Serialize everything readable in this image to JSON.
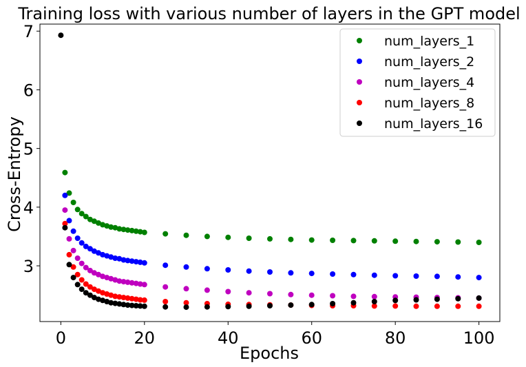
{
  "chart_data": {
    "type": "scatter",
    "title": "Training loss with various number of layers in the GPT model",
    "xlabel": "Epochs",
    "ylabel": "Cross-Entropy",
    "xlim": [
      -5,
      105
    ],
    "ylim": [
      2.05,
      7.12
    ],
    "xticks": [
      0,
      20,
      40,
      60,
      80,
      100
    ],
    "yticks": [
      3,
      4,
      5,
      6,
      7
    ],
    "grid": false,
    "legend_position": "top-right",
    "series": [
      {
        "name": "num_layers_1",
        "color": "#008000",
        "x": [
          1,
          2,
          3,
          4,
          5,
          6,
          7,
          8,
          9,
          10,
          11,
          12,
          13,
          14,
          15,
          16,
          17,
          18,
          19,
          20,
          25,
          30,
          35,
          40,
          45,
          50,
          55,
          60,
          65,
          70,
          75,
          80,
          85,
          90,
          95,
          100
        ],
        "y": [
          4.59,
          4.24,
          4.08,
          3.96,
          3.89,
          3.84,
          3.79,
          3.76,
          3.73,
          3.7,
          3.68,
          3.66,
          3.65,
          3.63,
          3.62,
          3.61,
          3.6,
          3.59,
          3.58,
          3.57,
          3.545,
          3.52,
          3.5,
          3.485,
          3.47,
          3.46,
          3.45,
          3.44,
          3.435,
          3.43,
          3.425,
          3.42,
          3.415,
          3.41,
          3.405,
          3.4
        ]
      },
      {
        "name": "num_layers_2",
        "color": "#0000ff",
        "x": [
          1,
          2,
          3,
          4,
          5,
          6,
          7,
          8,
          9,
          10,
          11,
          12,
          13,
          14,
          15,
          16,
          17,
          18,
          19,
          20,
          25,
          30,
          35,
          40,
          45,
          50,
          55,
          60,
          65,
          70,
          75,
          80,
          85,
          90,
          95,
          100
        ],
        "y": [
          4.2,
          3.77,
          3.59,
          3.47,
          3.39,
          3.33,
          3.29,
          3.25,
          3.22,
          3.19,
          3.17,
          3.15,
          3.13,
          3.12,
          3.1,
          3.09,
          3.08,
          3.07,
          3.06,
          3.05,
          3.01,
          2.98,
          2.95,
          2.93,
          2.91,
          2.895,
          2.88,
          2.87,
          2.86,
          2.85,
          2.84,
          2.83,
          2.825,
          2.82,
          2.81,
          2.8
        ]
      },
      {
        "name": "num_layers_4",
        "color": "#bf00bf",
        "x": [
          1,
          2,
          3,
          4,
          5,
          6,
          7,
          8,
          9,
          10,
          11,
          12,
          13,
          14,
          15,
          16,
          17,
          18,
          19,
          20,
          25,
          30,
          35,
          40,
          45,
          50,
          55,
          60,
          65,
          70,
          75,
          80,
          85,
          90,
          95,
          100
        ],
        "y": [
          3.95,
          3.46,
          3.26,
          3.13,
          3.04,
          2.97,
          2.92,
          2.88,
          2.85,
          2.82,
          2.8,
          2.78,
          2.76,
          2.74,
          2.73,
          2.72,
          2.71,
          2.7,
          2.69,
          2.68,
          2.64,
          2.61,
          2.585,
          2.56,
          2.54,
          2.525,
          2.51,
          2.5,
          2.49,
          2.48,
          2.475,
          2.47,
          2.465,
          2.46,
          2.455,
          2.45
        ]
      },
      {
        "name": "num_layers_8",
        "color": "#ff0000",
        "x": [
          1,
          2,
          3,
          4,
          5,
          6,
          7,
          8,
          9,
          10,
          11,
          12,
          13,
          14,
          15,
          16,
          17,
          18,
          19,
          20,
          25,
          30,
          35,
          40,
          45,
          50,
          55,
          60,
          65,
          70,
          75,
          80,
          85,
          90,
          95,
          100
        ],
        "y": [
          3.72,
          3.19,
          2.98,
          2.85,
          2.76,
          2.69,
          2.64,
          2.6,
          2.57,
          2.54,
          2.52,
          2.5,
          2.48,
          2.47,
          2.46,
          2.45,
          2.44,
          2.43,
          2.42,
          2.415,
          2.39,
          2.37,
          2.355,
          2.345,
          2.34,
          2.335,
          2.33,
          2.325,
          2.32,
          2.32,
          2.315,
          2.315,
          2.31,
          2.31,
          2.31,
          2.31
        ]
      },
      {
        "name": "num_layers_16",
        "color": "#000000",
        "x": [
          0,
          1,
          2,
          3,
          4,
          5,
          6,
          7,
          8,
          9,
          10,
          11,
          12,
          13,
          14,
          15,
          16,
          17,
          18,
          19,
          20,
          25,
          30,
          35,
          40,
          45,
          50,
          55,
          60,
          65,
          70,
          75,
          80,
          85,
          90,
          95,
          100
        ],
        "y": [
          6.93,
          3.65,
          3.02,
          2.8,
          2.68,
          2.6,
          2.54,
          2.5,
          2.46,
          2.43,
          2.41,
          2.39,
          2.37,
          2.36,
          2.35,
          2.34,
          2.33,
          2.325,
          2.32,
          2.315,
          2.31,
          2.3,
          2.295,
          2.3,
          2.305,
          2.31,
          2.32,
          2.33,
          2.34,
          2.355,
          2.37,
          2.39,
          2.41,
          2.42,
          2.43,
          2.44,
          2.45
        ]
      }
    ]
  }
}
